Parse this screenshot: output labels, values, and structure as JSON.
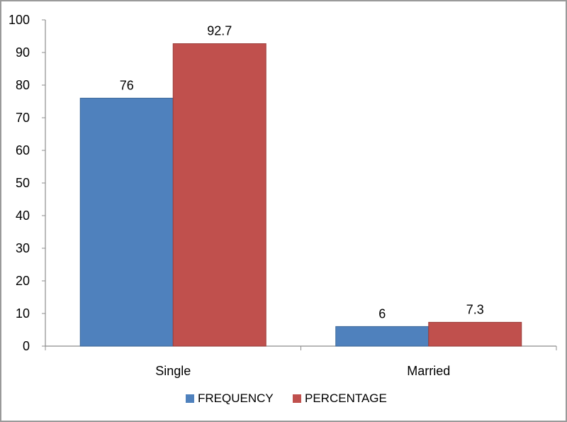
{
  "chart_data": {
    "type": "bar",
    "categories": [
      "Single",
      "Married"
    ],
    "series": [
      {
        "name": "FREQUENCY",
        "values": [
          76,
          6
        ],
        "color": "#4f81bd",
        "labels": [
          "76",
          "6"
        ]
      },
      {
        "name": "PERCENTAGE",
        "values": [
          92.7,
          7.3
        ],
        "color": "#c0504d",
        "labels": [
          "92.7",
          "7.3"
        ]
      }
    ],
    "title": "",
    "xlabel": "",
    "ylabel": "",
    "ylim": [
      0,
      100
    ],
    "yticks": [
      "0",
      "10",
      "20",
      "30",
      "40",
      "50",
      "60",
      "70",
      "80",
      "90",
      "100"
    ],
    "grid": false,
    "legend_position": "bottom"
  }
}
